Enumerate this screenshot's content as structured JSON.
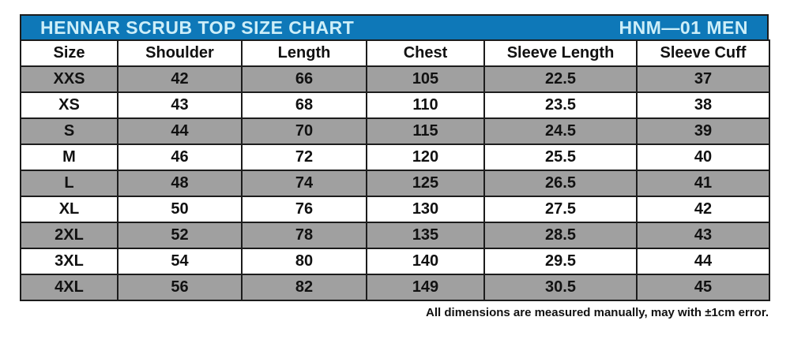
{
  "title_bar": {
    "title": "HENNAR SCRUB TOP SIZE CHART",
    "model": "HNM—01 MEN"
  },
  "table": {
    "headers": [
      "Size",
      "Shoulder",
      "Length",
      "Chest",
      "Sleeve Length",
      "Sleeve Cuff"
    ],
    "rows": [
      [
        "XXS",
        "42",
        "66",
        "105",
        "22.5",
        "37"
      ],
      [
        "XS",
        "43",
        "68",
        "110",
        "23.5",
        "38"
      ],
      [
        "S",
        "44",
        "70",
        "115",
        "24.5",
        "39"
      ],
      [
        "M",
        "46",
        "72",
        "120",
        "25.5",
        "40"
      ],
      [
        "L",
        "48",
        "74",
        "125",
        "26.5",
        "41"
      ],
      [
        "XL",
        "50",
        "76",
        "130",
        "27.5",
        "42"
      ],
      [
        "2XL",
        "52",
        "78",
        "135",
        "28.5",
        "43"
      ],
      [
        "3XL",
        "54",
        "80",
        "140",
        "29.5",
        "44"
      ],
      [
        "4XL",
        "56",
        "82",
        "149",
        "30.5",
        "45"
      ]
    ]
  },
  "footer": {
    "note": "All dimensions are measured manually, may with ±1cm error."
  },
  "colors": {
    "title_bg": "#0e78b8",
    "title_text": "#cdeef8",
    "row_alt_bg": "#a0a0a0",
    "row_bg": "#ffffff",
    "border": "#1c1c1c",
    "text": "#111111"
  },
  "chart_data": {
    "type": "table",
    "title": "HENNAR SCRUB TOP SIZE CHART",
    "subtitle": "HNM—01 MEN",
    "columns": [
      "Size",
      "Shoulder",
      "Length",
      "Chest",
      "Sleeve Length",
      "Sleeve Cuff"
    ],
    "rows": [
      [
        "XXS",
        42,
        66,
        105,
        22.5,
        37
      ],
      [
        "XS",
        43,
        68,
        110,
        23.5,
        38
      ],
      [
        "S",
        44,
        70,
        115,
        24.5,
        39
      ],
      [
        "M",
        46,
        72,
        120,
        25.5,
        40
      ],
      [
        "L",
        48,
        74,
        125,
        26.5,
        41
      ],
      [
        "XL",
        50,
        76,
        130,
        27.5,
        42
      ],
      [
        "2XL",
        52,
        78,
        135,
        28.5,
        43
      ],
      [
        "3XL",
        54,
        80,
        140,
        29.5,
        44
      ],
      [
        "4XL",
        56,
        82,
        149,
        30.5,
        45
      ]
    ],
    "note": "All dimensions are measured manually, may with ±1cm error.",
    "layout_hints": {
      "alternating_rows": true,
      "first_data_row_shaded": true,
      "grid": true
    }
  }
}
